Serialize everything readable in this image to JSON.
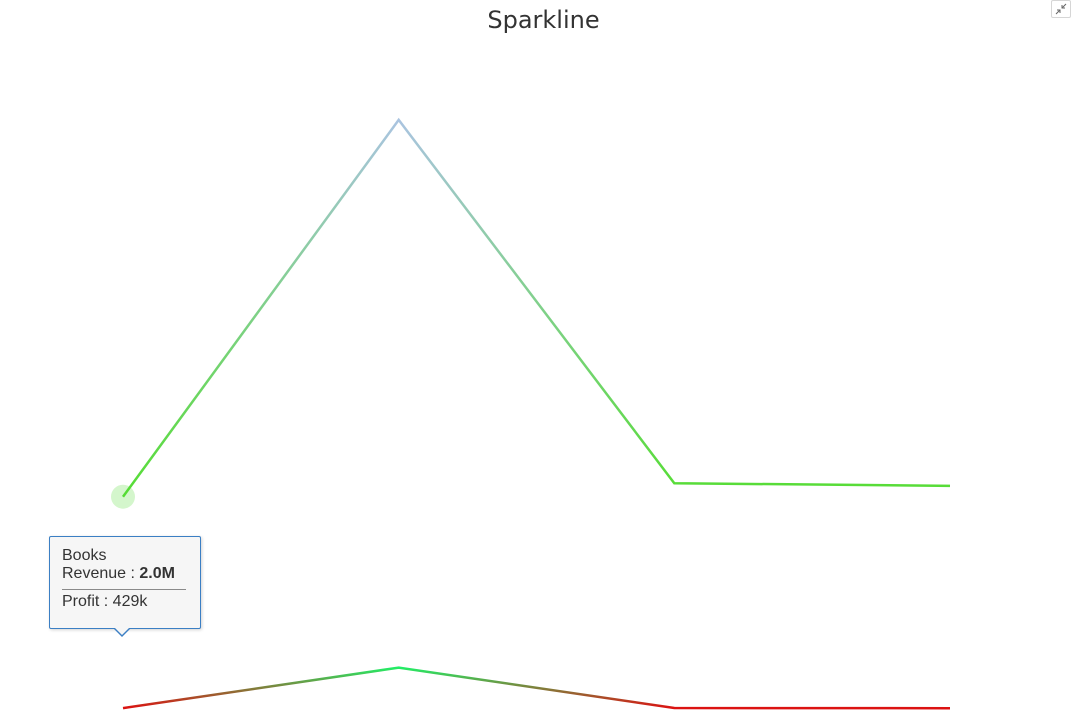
{
  "chart_data": {
    "type": "line",
    "title": "Sparkline",
    "categories": [
      "Books",
      "",
      "",
      ""
    ],
    "series": [
      {
        "name": "Revenue",
        "values": [
          2.0,
          4.8,
          2.1,
          2.08
        ],
        "gradient_colors": [
          "#aac4e0",
          "#55dd33"
        ]
      },
      {
        "name": "Profit",
        "values": [
          0.429,
          0.73,
          0.43,
          0.428
        ],
        "gradient_colors": [
          "#22ee66",
          "#dd1111"
        ]
      }
    ],
    "ylim": [
      0.4,
      5
    ],
    "grid": false,
    "tooltip": {
      "category": "Books",
      "line1_label": "Revenue : ",
      "line1_value": "2.0M",
      "line2_text": "Profit : 429k"
    },
    "highlight_point_color": "#55dd33"
  },
  "toolbar": {
    "expand_icon": "collapse-arrows-icon"
  }
}
